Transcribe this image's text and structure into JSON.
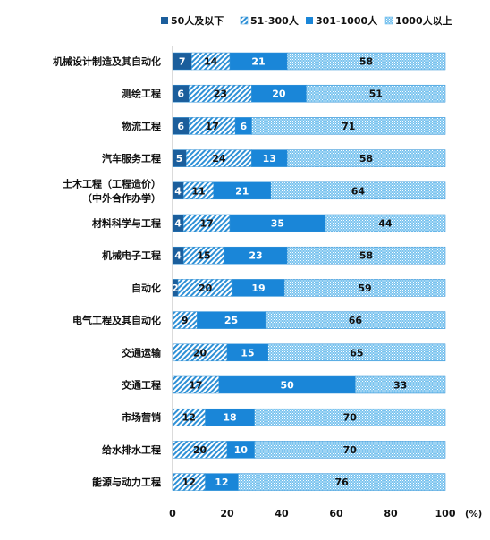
{
  "chart_data": {
    "type": "bar",
    "orientation": "horizontal",
    "stacked": true,
    "categories": [
      "机械设计制造及其自动化",
      "测绘工程",
      "物流工程",
      "汽车服务工程",
      "土木工程（工程造价）\n（中外合作办学）",
      "材料科学与工程",
      "机械电子工程",
      "自动化",
      "电气工程及其自动化",
      "交通运输",
      "交通工程",
      "市场营销",
      "给水排水工程",
      "能源与动力工程"
    ],
    "series": [
      {
        "name": "50人及以下",
        "color": "#1b5e9c",
        "pattern": "solid",
        "values": [
          7,
          6,
          6,
          5,
          4,
          4,
          4,
          2,
          0,
          0,
          0,
          0,
          0,
          0
        ],
        "labels": [
          "7",
          "6",
          "6",
          "5",
          "4",
          "4",
          "4",
          "2",
          "",
          "",
          "",
          "",
          "",
          ""
        ]
      },
      {
        "name": "51-300人",
        "color": "#2e90d6",
        "pattern": "diagonal",
        "values": [
          14,
          23,
          17,
          24,
          11,
          17,
          15,
          20,
          9,
          20,
          17,
          12,
          20,
          12
        ],
        "labels": [
          "14",
          "23",
          "17",
          "24",
          "11",
          "17",
          "15",
          "20",
          "9",
          "20",
          "17",
          "12",
          "20",
          "12"
        ]
      },
      {
        "name": "301-1000人",
        "color": "#1a86d8",
        "pattern": "solid",
        "values": [
          21,
          20,
          6,
          13,
          21,
          35,
          23,
          19,
          25,
          15,
          50,
          18,
          10,
          12
        ],
        "labels": [
          "21",
          "20",
          "6",
          "13",
          "21",
          "35",
          "23",
          "19",
          "25",
          "15",
          "50",
          "18",
          "10",
          "12"
        ]
      },
      {
        "name": "1000人以上",
        "color": "#5fb6ea",
        "pattern": "dots",
        "values": [
          58,
          51,
          71,
          58,
          64,
          44,
          58,
          59,
          66,
          65,
          33,
          70,
          70,
          76
        ],
        "labels": [
          "58",
          "51",
          "71",
          "58",
          "64",
          "44",
          "58",
          "59",
          "66",
          "65",
          "33",
          "70",
          "70",
          "76"
        ]
      }
    ],
    "xlim": [
      0,
      100
    ],
    "xticks": [
      "0",
      "20",
      "40",
      "60",
      "80",
      "100"
    ],
    "xunit": "(%)",
    "legend_position": "top",
    "grid": false
  }
}
